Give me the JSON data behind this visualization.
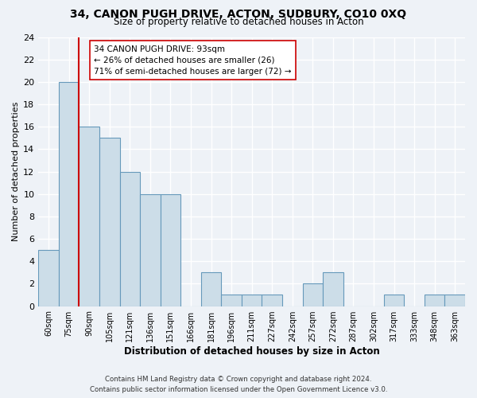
{
  "title": "34, CANON PUGH DRIVE, ACTON, SUDBURY, CO10 0XQ",
  "subtitle": "Size of property relative to detached houses in Acton",
  "xlabel": "Distribution of detached houses by size in Acton",
  "ylabel": "Number of detached properties",
  "bin_labels": [
    "60sqm",
    "75sqm",
    "90sqm",
    "105sqm",
    "121sqm",
    "136sqm",
    "151sqm",
    "166sqm",
    "181sqm",
    "196sqm",
    "211sqm",
    "227sqm",
    "242sqm",
    "257sqm",
    "272sqm",
    "287sqm",
    "302sqm",
    "317sqm",
    "333sqm",
    "348sqm",
    "363sqm"
  ],
  "bin_values": [
    5,
    20,
    16,
    15,
    12,
    10,
    10,
    0,
    3,
    1,
    1,
    1,
    0,
    2,
    3,
    0,
    0,
    1,
    0,
    1,
    1
  ],
  "bar_color": "#ccdde8",
  "bar_edge_color": "#6699bb",
  "property_line_label": "34 CANON PUGH DRIVE: 93sqm",
  "annotation_line1": "← 26% of detached houses are smaller (26)",
  "annotation_line2": "71% of semi-detached houses are larger (72) →",
  "property_line_color": "#cc0000",
  "property_line_bin_index": 2,
  "ylim": [
    0,
    24
  ],
  "yticks": [
    0,
    2,
    4,
    6,
    8,
    10,
    12,
    14,
    16,
    18,
    20,
    22,
    24
  ],
  "footer1": "Contains HM Land Registry data © Crown copyright and database right 2024.",
  "footer2": "Contains public sector information licensed under the Open Government Licence v3.0.",
  "background_color": "#eef2f7",
  "grid_color": "#ffffff",
  "annotation_box_color": "#ffffff",
  "annotation_box_edge": "#cc0000"
}
